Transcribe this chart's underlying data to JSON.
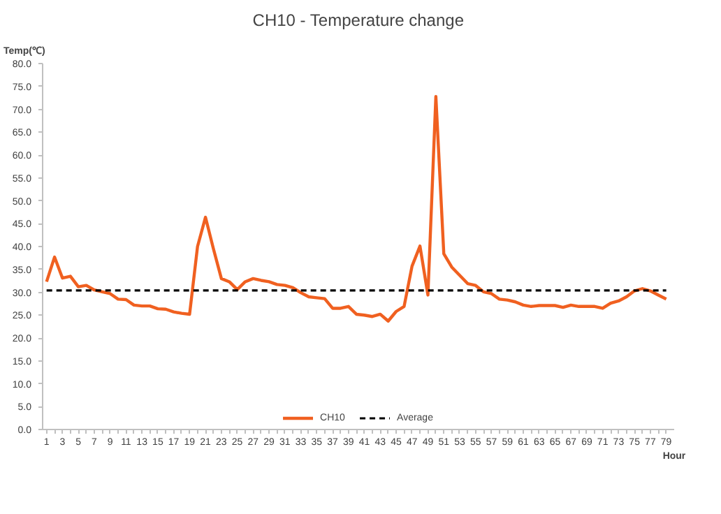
{
  "chart_data": {
    "type": "line",
    "title": "CH10 - Temperature change",
    "xlabel": "Hour",
    "ylabel": "Temp(℃)",
    "x": [
      1,
      2,
      3,
      4,
      5,
      6,
      7,
      8,
      9,
      10,
      11,
      12,
      13,
      14,
      15,
      16,
      17,
      18,
      19,
      20,
      21,
      22,
      23,
      24,
      25,
      26,
      27,
      28,
      29,
      30,
      31,
      32,
      33,
      34,
      35,
      36,
      37,
      38,
      39,
      40,
      41,
      42,
      43,
      44,
      45,
      46,
      47,
      48,
      49,
      50,
      51,
      52,
      53,
      54,
      55,
      56,
      57,
      58,
      59,
      60,
      61,
      62,
      63,
      64,
      65,
      66,
      67,
      68,
      69,
      70,
      71,
      72,
      73,
      74,
      75,
      76,
      77,
      78,
      79
    ],
    "series": [
      {
        "name": "CH10",
        "color": "#f06020",
        "line_style": "solid",
        "values": [
          32.3,
          37.7,
          33.1,
          33.5,
          31.2,
          31.5,
          30.5,
          30.1,
          29.7,
          28.5,
          28.4,
          27.2,
          27.0,
          27.0,
          26.4,
          26.3,
          25.7,
          25.4,
          25.2,
          40.0,
          46.4,
          39.5,
          33.0,
          32.3,
          30.6,
          32.3,
          33.0,
          32.6,
          32.3,
          31.7,
          31.5,
          31.0,
          29.9,
          29.0,
          28.8,
          28.6,
          26.5,
          26.5,
          26.9,
          25.2,
          25.0,
          24.7,
          25.2,
          23.7,
          25.8,
          26.9,
          35.7,
          40.1,
          29.4,
          72.8,
          38.4,
          35.5,
          33.7,
          31.9,
          31.5,
          30.1,
          29.7,
          28.5,
          28.3,
          27.9,
          27.2,
          26.9,
          27.1,
          27.1,
          27.1,
          26.7,
          27.2,
          26.9,
          26.9,
          26.9,
          26.5,
          27.6,
          28.1,
          29.0,
          30.3,
          30.8,
          30.3,
          29.4,
          28.5
        ]
      },
      {
        "name": "Average",
        "color": "#000000",
        "line_style": "dashed",
        "x": [
          1,
          79
        ],
        "values": [
          30.4,
          30.4
        ]
      }
    ],
    "xlim": [
      0.5,
      80
    ],
    "xticks": [
      1,
      {
        "value": 2,
        "label": null
      },
      3,
      {
        "value": 4,
        "label": null
      },
      5,
      {
        "value": 6,
        "label": null
      },
      7,
      {
        "value": 8,
        "label": null
      },
      9,
      {
        "value": 10,
        "label": null
      },
      11,
      {
        "value": 12,
        "label": null
      },
      13,
      {
        "value": 14,
        "label": null
      },
      15,
      {
        "value": 16,
        "label": null
      },
      17,
      {
        "value": 18,
        "label": null
      },
      19,
      {
        "value": 20,
        "label": null
      },
      21,
      {
        "value": 22,
        "label": null
      },
      23,
      {
        "value": 24,
        "label": null
      },
      25,
      {
        "value": 26,
        "label": null
      },
      27,
      {
        "value": 28,
        "label": null
      },
      29,
      {
        "value": 30,
        "label": null
      },
      31,
      {
        "value": 32,
        "label": null
      },
      33,
      {
        "value": 34,
        "label": null
      },
      35,
      {
        "value": 36,
        "label": null
      },
      37,
      {
        "value": 38,
        "label": null
      },
      39,
      {
        "value": 40,
        "label": null
      },
      41,
      {
        "value": 42,
        "label": null
      },
      43,
      {
        "value": 44,
        "label": null
      },
      45,
      {
        "value": 46,
        "label": null
      },
      47,
      {
        "value": 48,
        "label": null
      },
      49,
      {
        "value": 50,
        "label": null
      },
      51,
      {
        "value": 52,
        "label": null
      },
      53,
      {
        "value": 54,
        "label": null
      },
      55,
      {
        "value": 56,
        "label": null
      },
      57,
      {
        "value": 58,
        "label": null
      },
      59,
      {
        "value": 60,
        "label": null
      },
      61,
      {
        "value": 62,
        "label": null
      },
      63,
      {
        "value": 64,
        "label": null
      },
      65,
      {
        "value": 66,
        "label": null
      },
      67,
      {
        "value": 68,
        "label": null
      },
      69,
      {
        "value": 70,
        "label": null
      },
      71,
      {
        "value": 72,
        "label": null
      },
      73,
      {
        "value": 74,
        "label": null
      },
      75,
      {
        "value": 76,
        "label": null
      },
      77,
      {
        "value": 78,
        "label": null
      },
      79
    ],
    "ylim": [
      0,
      80
    ],
    "yticks": [
      {
        "value": 0,
        "label": "0.0"
      },
      {
        "value": 5,
        "label": "5.0"
      },
      {
        "value": 10,
        "label": "10.0"
      },
      {
        "value": 15,
        "label": "15.0"
      },
      {
        "value": 20,
        "label": "20.0"
      },
      {
        "value": 25,
        "label": "25.0"
      },
      {
        "value": 30,
        "label": "30.0"
      },
      {
        "value": 35,
        "label": "35.0"
      },
      {
        "value": 40,
        "label": "40.0"
      },
      {
        "value": 45,
        "label": "45.0"
      },
      {
        "value": 50,
        "label": "50.0"
      },
      {
        "value": 55,
        "label": "55.0"
      },
      {
        "value": 60,
        "label": "60.0"
      },
      {
        "value": 65,
        "label": "65.0"
      },
      {
        "value": 70,
        "label": "70.0"
      },
      {
        "value": 75,
        "label": "75.0"
      },
      {
        "value": 80,
        "label": "80.0"
      }
    ],
    "grid": false,
    "legend": "bottom",
    "marker": "none"
  }
}
